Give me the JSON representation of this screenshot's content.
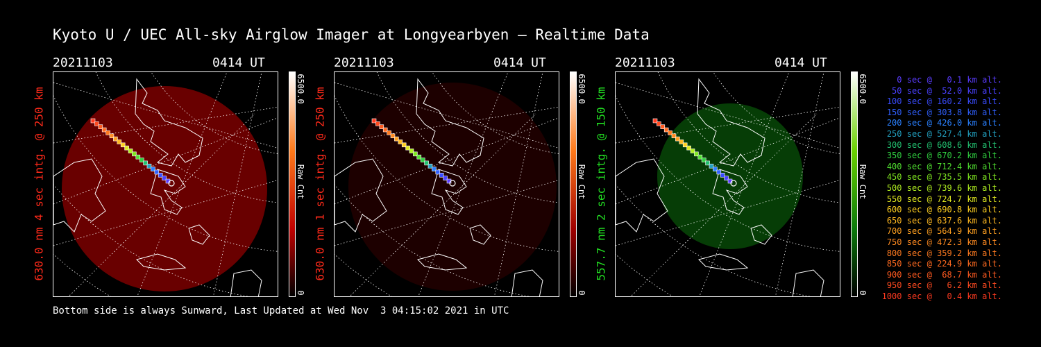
{
  "title": "Kyoto U / UEC All-sky Airglow Imager at Longyearbyen — Realtime Data",
  "footer": "Bottom side is always Sunward, Last Updated at Wed Nov  3 04:15:02 2021 in UTC",
  "panels": [
    {
      "date": "20211103",
      "time": "0414 UT",
      "ylabel": "630.0 nm 4 sec intg. @ 250 km",
      "cbar_max": "6500.0",
      "cbar_min": "0",
      "cbar_unit": "Raw Cnt",
      "colors": {
        "label": "#ff2a1a",
        "glow": "#c00000",
        "bar_top": "#ff7a1a"
      },
      "glow_opacity": 0.55
    },
    {
      "date": "20211103",
      "time": "0414 UT",
      "ylabel": "630.0 nm 1 sec intg. @ 250 km",
      "cbar_max": "6500.0",
      "cbar_min": "0",
      "cbar_unit": "Raw Cnt",
      "colors": {
        "label": "#ff2a1a",
        "glow": "#a00000",
        "bar_top": "#ff7a1a"
      },
      "glow_opacity": 0.18
    },
    {
      "date": "20211103",
      "time": "0414 UT",
      "ylabel": "557.7 nm 2 sec intg. @ 150 km",
      "cbar_max": "6500.0",
      "cbar_min": "0",
      "cbar_unit": "Raw Cnt",
      "colors": {
        "label": "#22dd22",
        "glow": "#0b7a0b",
        "bar_top": "#6ad000"
      },
      "glow_opacity": 0.5
    }
  ],
  "legend": [
    {
      "text": "0 sec @   0.1 km alt.",
      "color": "#5a3cff"
    },
    {
      "text": "50 sec @  52.0 km alt.",
      "color": "#4a40ff"
    },
    {
      "text": "100 sec @ 160.2 km alt.",
      "color": "#3a4cff"
    },
    {
      "text": "150 sec @ 303.8 km alt.",
      "color": "#3060ff"
    },
    {
      "text": "200 sec @ 426.0 km alt.",
      "color": "#2a80ff"
    },
    {
      "text": "250 sec @ 527.4 km alt.",
      "color": "#22a0c0"
    },
    {
      "text": "300 sec @ 608.6 km alt.",
      "color": "#22c070"
    },
    {
      "text": "350 sec @ 670.2 km alt.",
      "color": "#30d040"
    },
    {
      "text": "400 sec @ 712.4 km alt.",
      "color": "#50e030"
    },
    {
      "text": "450 sec @ 735.5 km alt.",
      "color": "#80e820"
    },
    {
      "text": "500 sec @ 739.6 km alt.",
      "color": "#b0f020"
    },
    {
      "text": "550 sec @ 724.7 km alt.",
      "color": "#e0e820"
    },
    {
      "text": "600 sec @ 690.8 km alt.",
      "color": "#ffd020"
    },
    {
      "text": "650 sec @ 637.6 km alt.",
      "color": "#ffb820"
    },
    {
      "text": "700 sec @ 564.9 km alt.",
      "color": "#ffa020"
    },
    {
      "text": "750 sec @ 472.3 km alt.",
      "color": "#ff8a20"
    },
    {
      "text": "800 sec @ 359.2 km alt.",
      "color": "#ff7a20"
    },
    {
      "text": "850 sec @ 224.9 km alt.",
      "color": "#ff6a20"
    },
    {
      "text": "900 sec @  68.7 km alt.",
      "color": "#ff5a20"
    },
    {
      "text": "950 sec @   6.2 km alt.",
      "color": "#ff4a20"
    },
    {
      "text": "1000 sec @   0.4 km alt.",
      "color": "#ff3a20"
    }
  ]
}
